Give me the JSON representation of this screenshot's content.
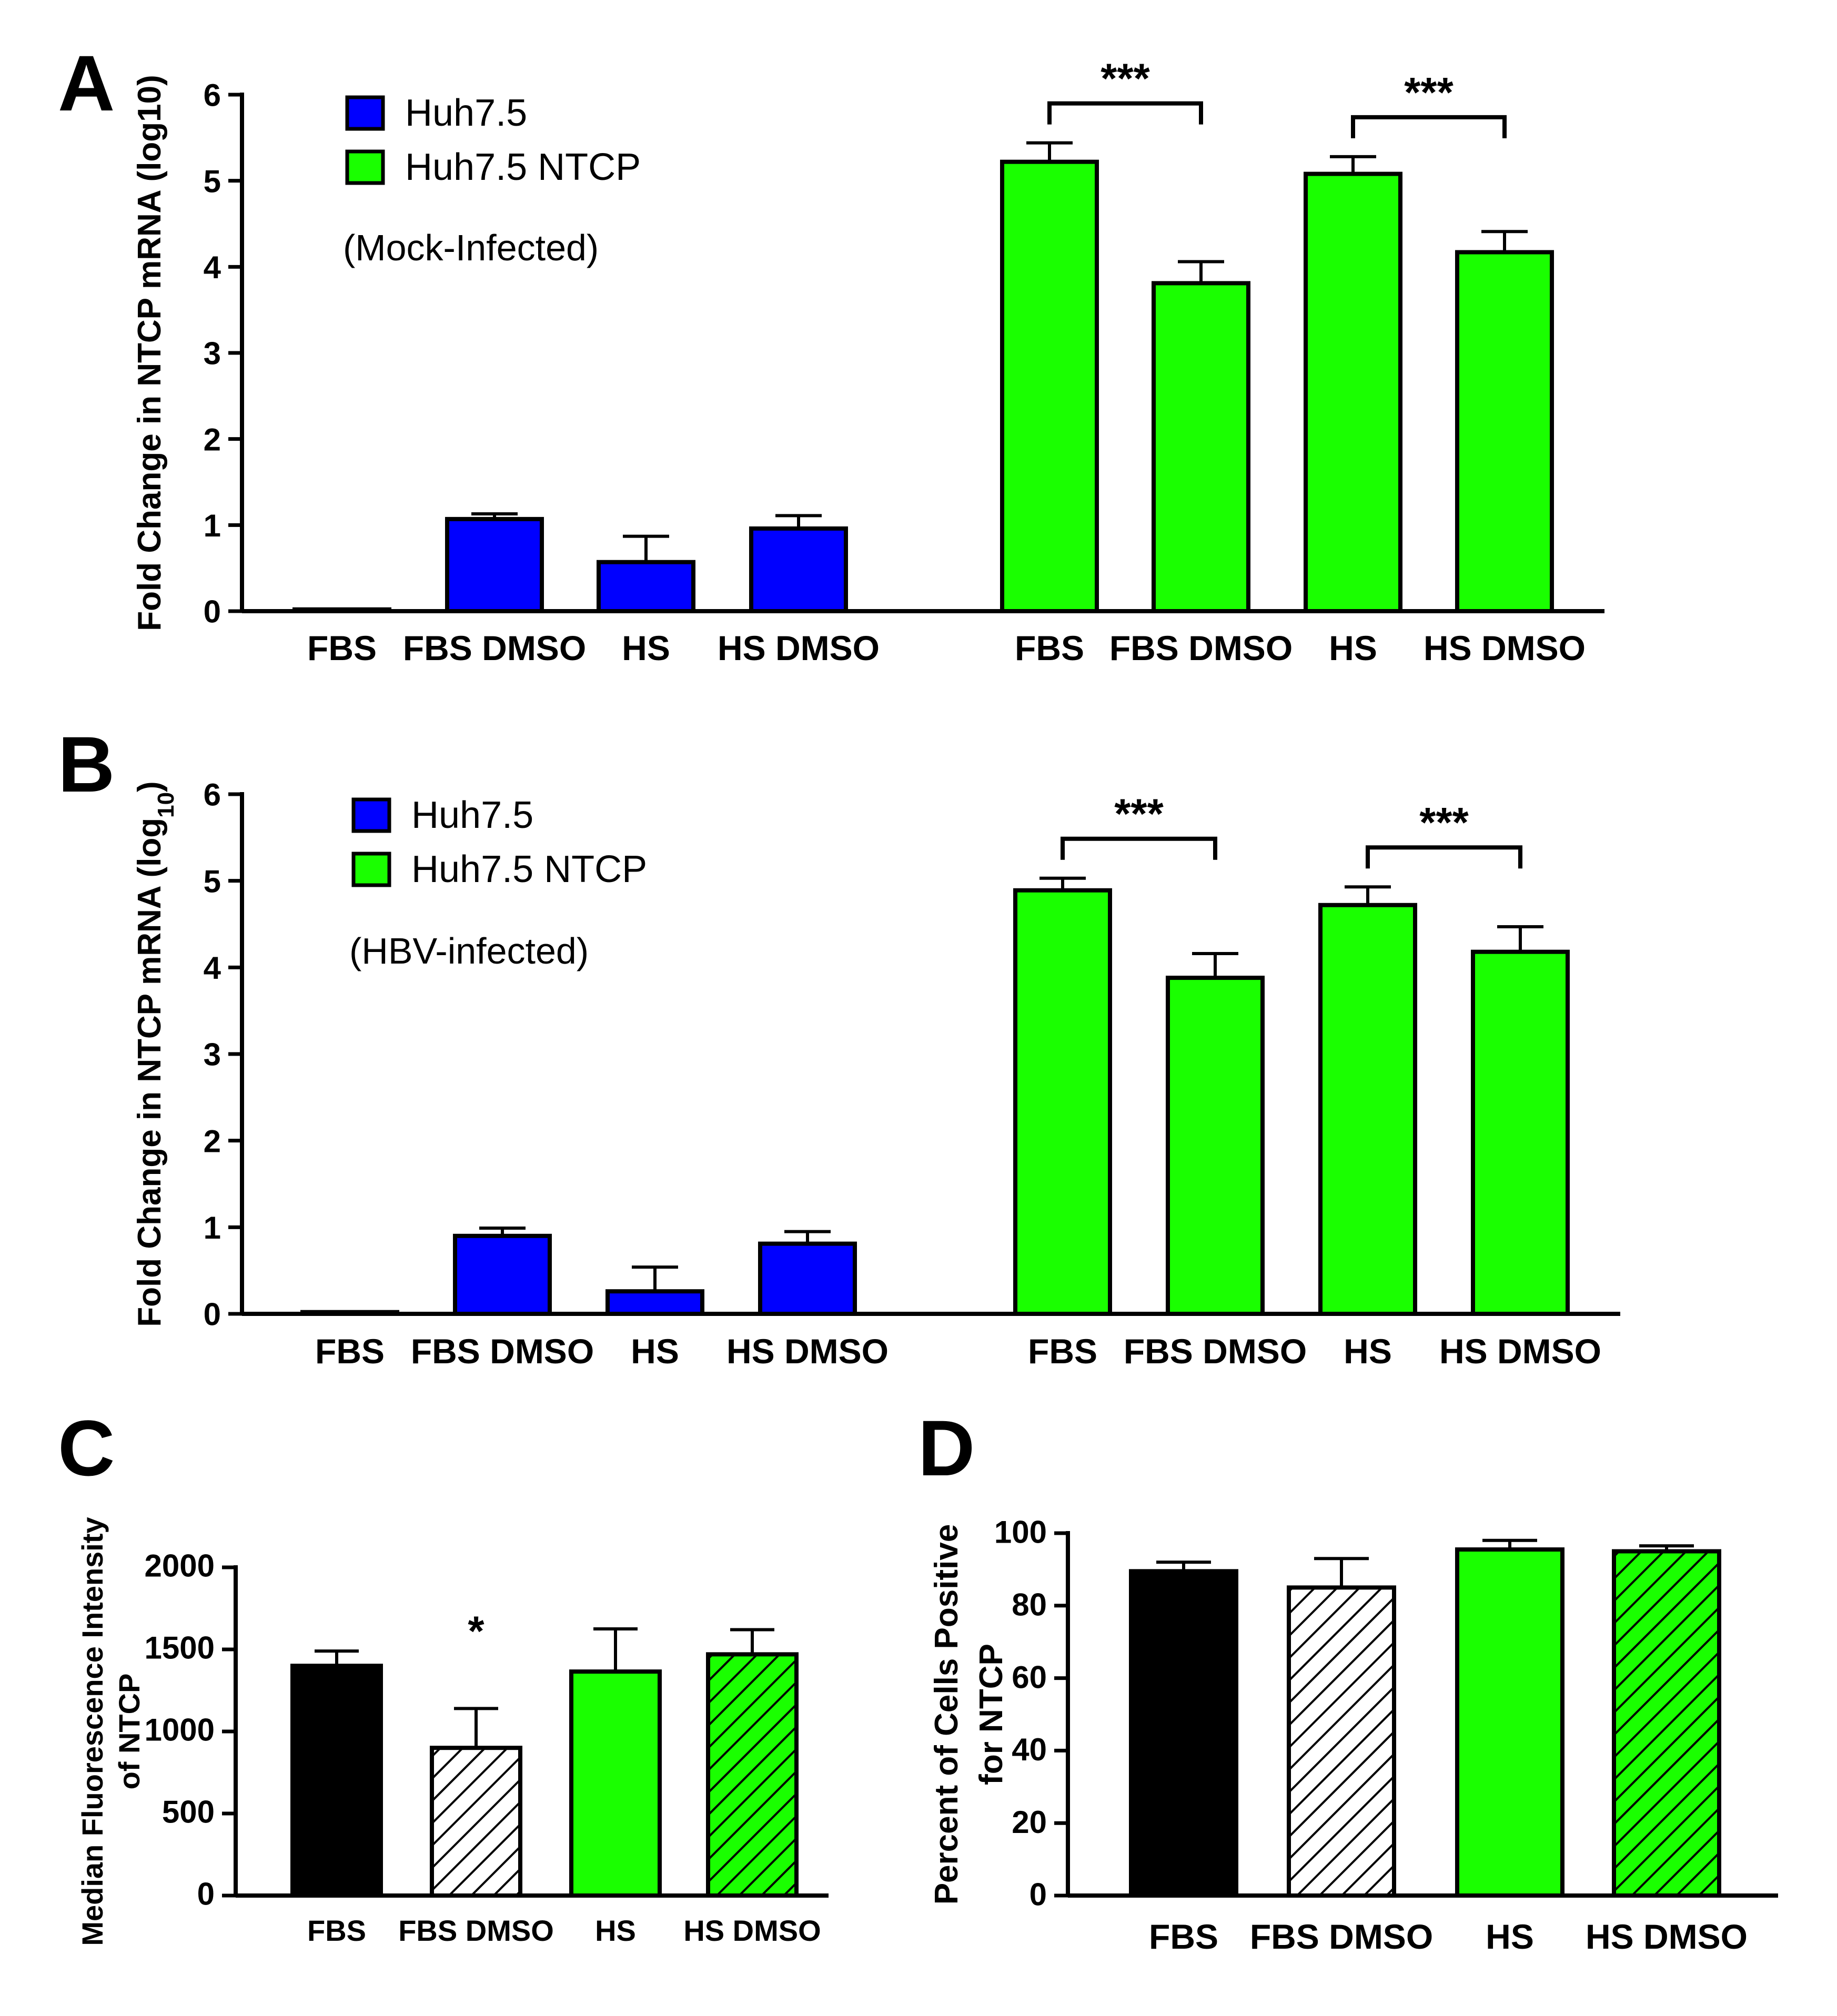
{
  "colors": {
    "huh75": "#0000ff",
    "huh75_ntcp": "#1aff00",
    "black": "#000000",
    "white": "#ffffff"
  },
  "panels": {
    "A": {
      "letter": "A"
    },
    "B": {
      "letter": "B"
    },
    "C": {
      "letter": "C"
    },
    "D": {
      "letter": "D"
    }
  },
  "chart_data": [
    {
      "id": "A",
      "type": "bar",
      "ylabel": "Fold Change in NTCP mRNA (log10)",
      "ylim": [
        0,
        6
      ],
      "yticks": [
        0,
        1,
        2,
        3,
        4,
        5,
        6
      ],
      "legend": [
        {
          "name": "Huh7.5",
          "color": "#0000ff"
        },
        {
          "name": "Huh7.5 NTCP",
          "color": "#1aff00"
        }
      ],
      "annotation": "(Mock-Infected)",
      "series": [
        {
          "name": "Huh7.5",
          "categories": [
            "FBS",
            "FBS DMSO",
            "HS",
            "HS DMSO"
          ],
          "values": [
            0.02,
            1.07,
            0.57,
            0.96
          ],
          "errors": [
            0.0,
            0.06,
            0.3,
            0.15
          ]
        },
        {
          "name": "Huh7.5 NTCP",
          "categories": [
            "FBS",
            "FBS DMSO",
            "HS",
            "HS DMSO"
          ],
          "values": [
            5.22,
            3.81,
            5.08,
            4.17
          ],
          "errors": [
            0.22,
            0.25,
            0.2,
            0.24
          ]
        }
      ],
      "significance": [
        {
          "group": "Huh7.5 NTCP",
          "from": 0,
          "to": 1,
          "label": "***"
        },
        {
          "group": "Huh7.5 NTCP",
          "from": 2,
          "to": 3,
          "label": "***"
        }
      ]
    },
    {
      "id": "B",
      "type": "bar",
      "ylabel": "Fold Change in NTCP mRNA (log",
      "ylabel_sub": "10",
      "ylabel_end": ")",
      "ylim": [
        0,
        6
      ],
      "yticks": [
        0,
        1,
        2,
        3,
        4,
        5,
        6
      ],
      "legend": [
        {
          "name": "Huh7.5",
          "color": "#0000ff"
        },
        {
          "name": "Huh7.5 NTCP",
          "color": "#1aff00"
        }
      ],
      "annotation": "(HBV-infected)",
      "series": [
        {
          "name": "Huh7.5",
          "categories": [
            "FBS",
            "FBS DMSO",
            "HS",
            "HS DMSO"
          ],
          "values": [
            0.02,
            0.9,
            0.26,
            0.81
          ],
          "errors": [
            0.0,
            0.09,
            0.28,
            0.14
          ]
        },
        {
          "name": "Huh7.5 NTCP",
          "categories": [
            "FBS",
            "FBS DMSO",
            "HS",
            "HS DMSO"
          ],
          "values": [
            4.89,
            3.88,
            4.72,
            4.18
          ],
          "errors": [
            0.14,
            0.28,
            0.21,
            0.29
          ]
        }
      ],
      "significance": [
        {
          "group": "Huh7.5 NTCP",
          "from": 0,
          "to": 1,
          "label": "***"
        },
        {
          "group": "Huh7.5 NTCP",
          "from": 2,
          "to": 3,
          "label": "***"
        }
      ]
    },
    {
      "id": "C",
      "type": "bar",
      "ylabel_line1": "Median Fluorescence Intensity",
      "ylabel_line2": "of NTCP",
      "ylim": [
        0,
        2000
      ],
      "yticks": [
        0,
        500,
        1000,
        1500,
        2000
      ],
      "categories": [
        "FBS",
        "FBS DMSO",
        "HS",
        "HS DMSO"
      ],
      "values": [
        1400,
        900,
        1365,
        1470
      ],
      "errors": [
        90,
        240,
        260,
        150
      ],
      "fills": [
        "black",
        "hatch-white",
        "green",
        "hatch-green"
      ],
      "significance": [
        {
          "index": 1,
          "label": "*"
        }
      ]
    },
    {
      "id": "D",
      "type": "bar",
      "ylabel_line1": "Percent of Cells Positive",
      "ylabel_line2": "for NTCP",
      "ylim": [
        0,
        100
      ],
      "yticks": [
        0,
        20,
        40,
        60,
        80,
        100
      ],
      "categories": [
        "FBS",
        "FBS DMSO",
        "HS",
        "HS DMSO"
      ],
      "values": [
        89.5,
        85,
        95.5,
        95
      ],
      "errors": [
        2.5,
        8,
        2.5,
        1.5
      ],
      "fills": [
        "black",
        "hatch-white",
        "green",
        "hatch-green"
      ]
    }
  ]
}
